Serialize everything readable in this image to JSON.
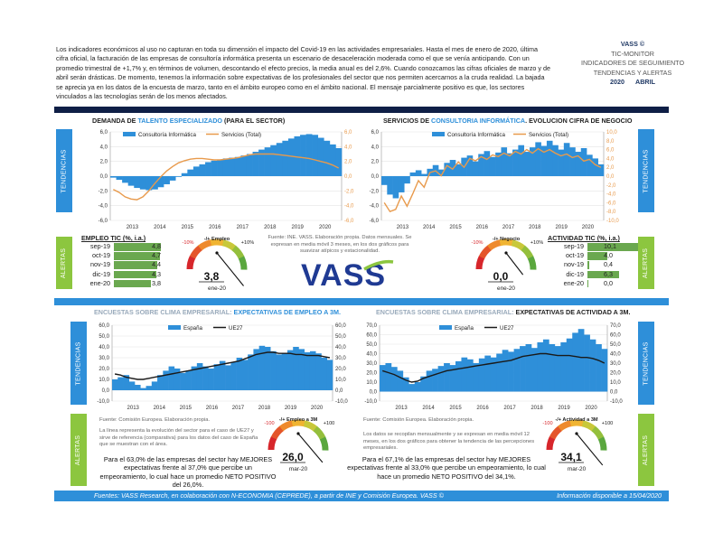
{
  "intro": "Los indicadores económicos al uso no capturan en toda su dimensión el impacto del Covid-19 en las actividades empresariales. Hasta el mes de enero de 2020, última cifra oficial, la facturación de las empresas de consultoría informática presenta un escenario de desaceleración moderada como el que se venía anticipando. Con un promedio trimestral de +1,7% y, en términos de volumen, descontando el efecto precios, la media anual es del 2,6%. Cuando conozcamos las cifras oficiales de marzo y de abril serán drásticas. De momento, tenemos la información sobre expectativas de los profesionales del sector que nos permiten acercarnos a la cruda realidad. La bajada se aprecia ya en los datos de la encuesta de marzo, tanto en el ámbito europeo como en el ámbito nacional. El mensaje parcialmente positivo es que, los sectores vinculados a las tecnologías serán de los menos afectados.",
  "brand": {
    "name": "VASS ©",
    "line1": "TIC-MONITOR",
    "line2": "INDICADORES DE SEGUIMIENTO",
    "line3": "TENDENCIAS Y ALERTAS",
    "year": "2020",
    "month": "ABRIL"
  },
  "tabs": {
    "tendencias": "TENDENCIAS",
    "alertas": "ALERTAS"
  },
  "logo_text": "VASS",
  "footer": {
    "left": "Fuentes: VASS Research, en colaboración con N-ECONOMIA (CEPREDE), a partir de INE y Comisión Europea. VASS ©",
    "right": "Información disponible a 15/04/2020"
  },
  "colors": {
    "navy": "#0f1f46",
    "blue": "#2e8fd9",
    "green": "#8cc63f",
    "orange": "#e89a4c",
    "bar_green": "#6aa84f"
  },
  "notes": {
    "mid": "Fuente: INE. VASS. Elaboración propia. Datos mensuales. Se expresan en media móvil 3 meses, en los dos gráficos para suavizar atípicos y estacionalidad.",
    "ce1": "Fuente: Comisión Europea. Elaboración propia.",
    "ce1b": "La línea representa la evolución del sector para el caso de UE27 y sirve de referencia (comparativa) para los datos del caso de España que se muestran con el área.",
    "ce2": "Fuente: Comisión Europea. Elaboración propia.",
    "ce2b": "Los datos se recopilan mensualmente y se expresan en media móvil 12 meses, en los dos gráficos para obtener la tendencia de las percepciones empresariales."
  },
  "paras": {
    "empleo": "Para el 63,0% de las empresas del sector hay MEJORES expectativas frente al 37,0% que percibe un empeoramiento, lo cual hace un promedio NETO POSITIVO del 26,0%.",
    "actividad": "Para el 67,1% de las empresas del sector hay MEJORES expectativas frente al 33,0% que percibe un empeoramiento, lo cual hace un promedio NETO POSITIVO del 34,1%."
  },
  "tables": {
    "empleo": {
      "title": "EMPLEO TIC (%, i.a.)",
      "rows": [
        {
          "label": "sep-19",
          "value": "4,8",
          "num": 4.8
        },
        {
          "label": "oct-19",
          "value": "4,7",
          "num": 4.7
        },
        {
          "label": "nov-19",
          "value": "4,4",
          "num": 4.4
        },
        {
          "label": "dic-19",
          "value": "4,3",
          "num": 4.3
        },
        {
          "label": "ene-20",
          "value": "3,8",
          "num": 3.8
        }
      ]
    },
    "actividad": {
      "title": "ACTIVIDAD TIC (%, i.a.)",
      "rows": [
        {
          "label": "sep-19",
          "value": "10,1",
          "num": 10.1
        },
        {
          "label": "oct-19",
          "value": "4,0",
          "num": 4.0
        },
        {
          "label": "nov-19",
          "value": "0,4",
          "num": 0.4
        },
        {
          "label": "dic-19",
          "value": "6,3",
          "num": 6.3
        },
        {
          "label": "ene-20",
          "value": "0,0",
          "num": 0.0
        }
      ]
    }
  },
  "gauges": {
    "empleo": {
      "title": "-/+ Empleo",
      "min_label": "-10%",
      "max_label": "+10%",
      "value": "3,8",
      "num": 3.8,
      "min": -10,
      "max": 10,
      "date": "ene-20"
    },
    "negocio": {
      "title": "-/+ Negocio",
      "min_label": "-10%",
      "max_label": "+10%",
      "value": "0,0",
      "num": 0.0,
      "min": -10,
      "max": 10,
      "date": "ene-20"
    },
    "empleo3m": {
      "title": "-/+ Empleo a 3M",
      "min_label": "-100",
      "max_label": "+100",
      "value": "26,0",
      "num": 26.0,
      "min": -100,
      "max": 100,
      "date": "mar-20"
    },
    "actividad3m": {
      "title": "-/+ Actividad a 3M",
      "min_label": "-100",
      "max_label": "+100",
      "value": "34,1",
      "num": 34.1,
      "min": -100,
      "max": 100,
      "date": "mar-20"
    }
  },
  "chart_data": [
    {
      "id": "talento",
      "type": "area",
      "title_pre": "DEMANDA DE ",
      "title_hl": "TALENTO ESPECIALIZADO",
      "title_post": " (PARA EL SECTOR)",
      "legend": [
        "Consultoría Informática",
        "Servicios (Total)"
      ],
      "x_ticks": [
        "2013",
        "2014",
        "2015",
        "2016",
        "2017",
        "2018",
        "2019",
        "2020"
      ],
      "y_left": {
        "min": -6,
        "max": 6,
        "ticks": [
          "6,0",
          "4,0",
          "2,0",
          "0,0",
          "-2,0",
          "-4,0",
          "-6,0"
        ]
      },
      "y_right": {
        "min": -6,
        "max": 6,
        "ticks": [
          "6,0",
          "4,0",
          "2,0",
          "0,0",
          "-2,0",
          "-4,0",
          "-6,0"
        ]
      },
      "series": [
        {
          "name": "Consultoría Informática",
          "style": "area",
          "axis": "left",
          "values": [
            -0.2,
            -0.5,
            -0.9,
            -1.3,
            -1.6,
            -1.8,
            -1.9,
            -1.8,
            -1.5,
            -1.1,
            -0.6,
            -0.1,
            0.4,
            0.9,
            1.3,
            1.6,
            1.9,
            2.1,
            2.2,
            2.4,
            2.5,
            2.6,
            2.8,
            3.0,
            3.3,
            3.6,
            3.9,
            4.2,
            4.5,
            4.8,
            5.1,
            5.4,
            5.6,
            5.7,
            5.6,
            5.2,
            4.8,
            4.3,
            3.8
          ]
        },
        {
          "name": "Servicios (Total)",
          "style": "line",
          "axis": "right",
          "values": [
            -1.8,
            -2.2,
            -2.8,
            -3.1,
            -3.2,
            -2.8,
            -2.0,
            -1.0,
            -0.1,
            0.7,
            1.3,
            1.8,
            2.1,
            2.3,
            2.4,
            2.4,
            2.3,
            2.2,
            2.2,
            2.3,
            2.4,
            2.5,
            2.7,
            2.9,
            3.0,
            3.0,
            3.0,
            3.0,
            2.9,
            2.8,
            2.7,
            2.6,
            2.5,
            2.4,
            2.2,
            2.0,
            1.8,
            1.5,
            1.1
          ]
        }
      ]
    },
    {
      "id": "consultoria",
      "type": "area",
      "title_pre": "SERVICIOS DE ",
      "title_hl": "CONSULTORIA INFORMÁTICA",
      "title_post": ". EVOLUCION CIFRA DE NEGOCIO",
      "legend": [
        "Consultoría Informática",
        "Servicios (Total)"
      ],
      "x_ticks": [
        "2013",
        "2014",
        "2015",
        "2016",
        "2017",
        "2018",
        "2019",
        "2020"
      ],
      "y_left": {
        "min": -6,
        "max": 6,
        "ticks": [
          "6,0",
          "4,0",
          "2,0",
          "0,0",
          "-2,0",
          "-4,0",
          "-6,0"
        ]
      },
      "y_right": {
        "min": -10,
        "max": 10,
        "ticks": [
          "10,0",
          "8,0",
          "6,0",
          "4,0",
          "2,0",
          "0,0",
          "-2,0",
          "-4,0",
          "-6,0",
          "-8,0",
          "-10,0"
        ]
      },
      "series": [
        {
          "name": "Consultoría Informática",
          "style": "area",
          "axis": "left",
          "values": [
            -1.2,
            -2.5,
            -3.0,
            -2.2,
            -1.0,
            0.5,
            0.8,
            0.3,
            1.0,
            1.5,
            0.9,
            1.8,
            2.2,
            1.6,
            2.5,
            2.8,
            2.0,
            3.0,
            3.4,
            2.6,
            3.2,
            3.9,
            3.1,
            3.6,
            4.2,
            3.3,
            3.9,
            4.6,
            4.1,
            4.8,
            4.2,
            3.6,
            4.5,
            3.9,
            3.3,
            3.8,
            2.9,
            2.4,
            1.6
          ]
        },
        {
          "name": "Servicios (Total)",
          "style": "line",
          "axis": "right",
          "values": [
            -6.0,
            -8.0,
            -7.5,
            -4.5,
            -6.8,
            -4.0,
            -1.0,
            -2.5,
            0.8,
            1.2,
            0.1,
            2.4,
            1.6,
            3.2,
            2.0,
            4.0,
            3.5,
            4.4,
            3.8,
            4.8,
            4.4,
            5.2,
            4.6,
            5.6,
            5.0,
            6.0,
            5.2,
            6.2,
            5.4,
            6.0,
            5.2,
            4.6,
            5.0,
            4.2,
            4.6,
            3.4,
            3.8,
            2.6,
            2.0
          ]
        }
      ]
    },
    {
      "id": "empleo3m",
      "type": "area",
      "title_pre": "ENCUESTAS SOBRE CLIMA EMPRESARIAL: ",
      "title_hl": "EXPECTATIVAS DE EMPLEO A 3M.",
      "title_post": "",
      "legend": [
        "España",
        "UE27"
      ],
      "x_ticks": [
        "2013",
        "2014",
        "2015",
        "2016",
        "2017",
        "2018",
        "2019",
        "2020"
      ],
      "y_left": {
        "min": -10,
        "max": 60,
        "ticks": [
          "60,0",
          "50,0",
          "40,0",
          "30,0",
          "20,0",
          "10,0",
          "0,0",
          "-10,0"
        ]
      },
      "y_right": {
        "min": -10,
        "max": 60,
        "ticks": [
          "60,0",
          "50,0",
          "40,0",
          "30,0",
          "20,0",
          "10,0",
          "0,0",
          "-10,0"
        ]
      },
      "series": [
        {
          "name": "España",
          "style": "area",
          "axis": "left",
          "values": [
            10,
            12,
            14,
            8,
            5,
            2,
            4,
            8,
            14,
            18,
            22,
            20,
            16,
            18,
            22,
            25,
            22,
            20,
            24,
            27,
            23,
            26,
            30,
            28,
            33,
            38,
            41,
            40,
            36,
            33,
            34,
            37,
            40,
            38,
            35,
            36,
            34,
            30,
            28
          ]
        },
        {
          "name": "UE27",
          "style": "line",
          "axis": "left",
          "values": [
            15,
            14,
            12,
            11,
            10,
            10,
            11,
            12,
            13,
            14,
            15,
            16,
            17,
            18,
            19,
            20,
            21,
            22,
            23,
            24,
            25,
            26,
            27,
            29,
            31,
            33,
            34,
            35,
            35,
            34,
            34,
            34,
            33,
            33,
            32,
            32,
            32,
            31,
            30
          ]
        }
      ]
    },
    {
      "id": "actividad3m",
      "type": "area",
      "title_pre": "ENCUESTAS SOBRE CLIMA EMPRESARIAL: ",
      "title_hl": "EXPECTATIVAS DE ACTIVIDAD A 3M.",
      "title_post": "",
      "legend": [
        "España",
        "UE27"
      ],
      "x_ticks": [
        "2013",
        "2014",
        "2015",
        "2016",
        "2017",
        "2018",
        "2019",
        "2020"
      ],
      "y_left": {
        "min": -10,
        "max": 70,
        "ticks": [
          "70,0",
          "60,0",
          "50,0",
          "40,0",
          "30,0",
          "20,0",
          "10,0",
          "0,0",
          "-10,0"
        ]
      },
      "y_right": {
        "min": -10,
        "max": 70,
        "ticks": [
          "70,0",
          "60,0",
          "50,0",
          "40,0",
          "30,0",
          "20,0",
          "10,0",
          "0,0",
          "-10,0"
        ]
      },
      "series": [
        {
          "name": "España",
          "style": "area",
          "axis": "left",
          "values": [
            28,
            30,
            26,
            22,
            15,
            8,
            10,
            16,
            22,
            24,
            27,
            30,
            28,
            32,
            36,
            34,
            30,
            35,
            38,
            36,
            40,
            44,
            42,
            45,
            48,
            50,
            46,
            52,
            55,
            50,
            48,
            52,
            56,
            62,
            66,
            60,
            55,
            50,
            45
          ]
        },
        {
          "name": "UE27",
          "style": "line",
          "axis": "left",
          "values": [
            22,
            20,
            18,
            15,
            12,
            10,
            11,
            14,
            16,
            18,
            20,
            22,
            23,
            24,
            25,
            26,
            27,
            28,
            29,
            30,
            31,
            32,
            33,
            35,
            37,
            38,
            39,
            40,
            40,
            39,
            38,
            38,
            38,
            37,
            36,
            36,
            35,
            33,
            30
          ]
        }
      ]
    }
  ]
}
